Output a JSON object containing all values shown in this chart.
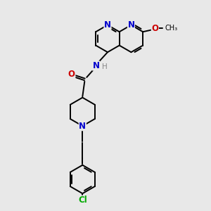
{
  "bg_color": "#e8e8e8",
  "bond_color": "#000000",
  "N_color": "#0000cc",
  "O_color": "#cc0000",
  "Cl_color": "#00aa00",
  "C_color": "#000000",
  "H_color": "#888888",
  "figsize": [
    3.0,
    3.0
  ],
  "dpi": 100,
  "lw": 1.4,
  "fs": 8.5,
  "xlim": [
    0,
    10
  ],
  "ylim": [
    0,
    10
  ]
}
